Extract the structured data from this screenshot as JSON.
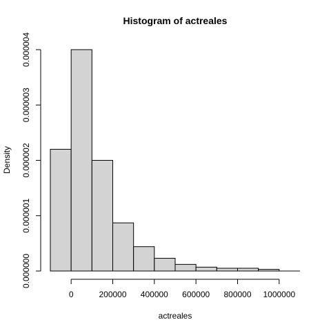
{
  "chart_data": {
    "type": "bar",
    "title": "Histogram of actreales",
    "xlabel": "actreales",
    "ylabel": "Density",
    "bins": [
      {
        "start": -100000,
        "end": 0,
        "density": 2.2e-06
      },
      {
        "start": 0,
        "end": 100000,
        "density": 4e-06
      },
      {
        "start": 100000,
        "end": 200000,
        "density": 2e-06
      },
      {
        "start": 200000,
        "end": 300000,
        "density": 8.7e-07
      },
      {
        "start": 300000,
        "end": 400000,
        "density": 4.4e-07
      },
      {
        "start": 400000,
        "end": 500000,
        "density": 2.3e-07
      },
      {
        "start": 500000,
        "end": 600000,
        "density": 1.2e-07
      },
      {
        "start": 600000,
        "end": 700000,
        "density": 7e-08
      },
      {
        "start": 700000,
        "end": 800000,
        "density": 5e-08
      },
      {
        "start": 800000,
        "end": 900000,
        "density": 5e-08
      },
      {
        "start": 900000,
        "end": 1000000,
        "density": 3e-08
      },
      {
        "start": 1000000,
        "end": 1100000,
        "density": 0
      }
    ],
    "xlim": [
      -100000,
      1100000
    ],
    "ylim": [
      0,
      4e-06
    ],
    "x_ticks": [
      0,
      200000,
      400000,
      600000,
      800000,
      1000000
    ],
    "x_tick_labels": [
      "0",
      "200000",
      "400000",
      "600000",
      "800000",
      "1000000"
    ],
    "y_ticks": [
      0,
      1e-06,
      2e-06,
      3e-06,
      4e-06
    ],
    "y_tick_labels": [
      "0.000000",
      "0.000001",
      "0.000002",
      "0.000003",
      "0.000004"
    ],
    "grid": false,
    "legend": "none",
    "colors": {
      "bar_fill": "#d3d3d3",
      "bar_stroke": "#000000"
    }
  }
}
